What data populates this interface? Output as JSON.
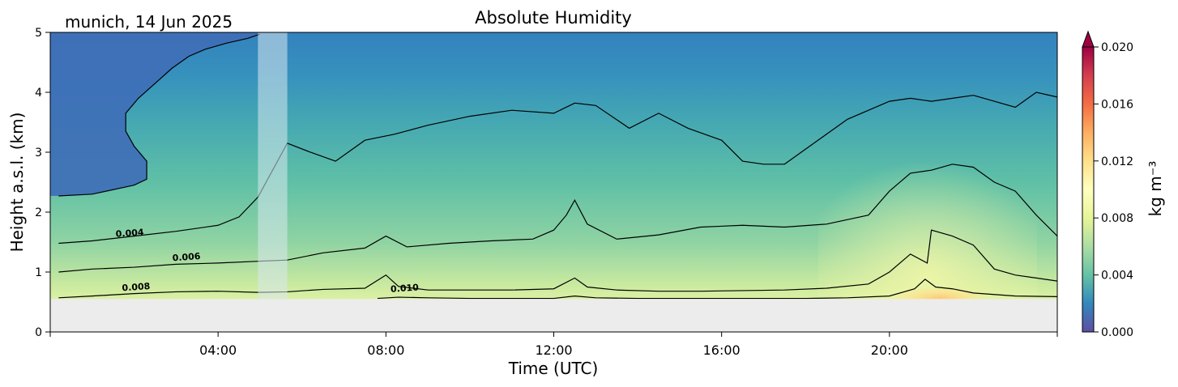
{
  "chart_data": {
    "type": "heatmap",
    "title": "Absolute Humidity",
    "corner_label": "munich, 14 Jun 2025",
    "xlabel": "Time (UTC)",
    "ylabel": "Height a.s.l. (km)",
    "xlim": [
      0,
      24
    ],
    "ylim": [
      0,
      5
    ],
    "x_ticks": [
      {
        "value": 4,
        "label": "04:00"
      },
      {
        "value": 8,
        "label": "08:00"
      },
      {
        "value": 12,
        "label": "12:00"
      },
      {
        "value": 16,
        "label": "16:00"
      },
      {
        "value": 20,
        "label": "20:00"
      }
    ],
    "y_ticks": [
      0,
      1,
      2,
      3,
      4,
      5
    ],
    "ground_level_km": 0.55,
    "missing_data_interval_hours": [
      4.95,
      5.65
    ],
    "colorbar": {
      "label": "kg m⁻³",
      "min": 0.0,
      "max": 0.02,
      "ticks": [
        "0.000",
        "0.004",
        "0.008",
        "0.012",
        "0.016",
        "0.020"
      ],
      "extend": "max",
      "colormap": [
        "#5e4fa2",
        "#3288bd",
        "#66c2a5",
        "#abdda4",
        "#e6f598",
        "#ffffbf",
        "#fee08b",
        "#fdae61",
        "#f46d43",
        "#d53e4f",
        "#9e0142"
      ]
    },
    "contour_labels": [
      {
        "text": "0.004",
        "x": 1.9,
        "y": 1.6
      },
      {
        "text": "0.006",
        "x": 3.25,
        "y": 1.2
      },
      {
        "text": "0.008",
        "x": 2.05,
        "y": 0.7
      },
      {
        "text": "0.010",
        "x": 8.45,
        "y": 0.68
      }
    ],
    "contours": [
      {
        "level": 0.002,
        "x": [
          0.2,
          1,
          2,
          2.3,
          2.3,
          2,
          1.8,
          1.8,
          2.1,
          2.5,
          2.9,
          3.3,
          3.7,
          4.2,
          4.7,
          5
        ],
        "y": [
          2.27,
          2.3,
          2.45,
          2.55,
          2.85,
          3.1,
          3.35,
          3.65,
          3.9,
          4.15,
          4.4,
          4.6,
          4.72,
          4.82,
          4.9,
          4.97
        ]
      },
      {
        "level": 0.004,
        "x": [
          0.2,
          1,
          2,
          3,
          4,
          4.5,
          4.95,
          5.65,
          6.2,
          6.8,
          7.5,
          8.2,
          9,
          10,
          11,
          12,
          12.5,
          13,
          13.8,
          14.5,
          15.2,
          16,
          16.5,
          17,
          17.5,
          18,
          18.5,
          19,
          19.5,
          20,
          20.5,
          21,
          21.5,
          22,
          22.5,
          23,
          23.5,
          24
        ],
        "y": [
          1.48,
          1.52,
          1.6,
          1.68,
          1.78,
          1.92,
          2.25,
          3.15,
          3.0,
          2.85,
          3.2,
          3.3,
          3.45,
          3.6,
          3.7,
          3.65,
          3.82,
          3.78,
          3.4,
          3.65,
          3.4,
          3.2,
          2.85,
          2.8,
          2.8,
          3.05,
          3.3,
          3.55,
          3.7,
          3.85,
          3.9,
          3.85,
          3.9,
          3.95,
          3.85,
          3.75,
          4.0,
          3.92
        ]
      },
      {
        "level": 0.006,
        "x": [
          0.2,
          1,
          2,
          3,
          4,
          4.95,
          5.65,
          6.5,
          7.5,
          8,
          8.5,
          9.5,
          10.5,
          11.5,
          12,
          12.3,
          12.5,
          12.8,
          13.5,
          14.5,
          15.5,
          16.5,
          17.5,
          18.5,
          19.5,
          20,
          20.5,
          21,
          21.5,
          22,
          22.5,
          23,
          23.5,
          24
        ],
        "y": [
          1.0,
          1.05,
          1.08,
          1.13,
          1.15,
          1.18,
          1.2,
          1.32,
          1.4,
          1.6,
          1.42,
          1.48,
          1.52,
          1.55,
          1.7,
          1.95,
          2.2,
          1.8,
          1.55,
          1.62,
          1.75,
          1.78,
          1.75,
          1.8,
          1.95,
          2.35,
          2.65,
          2.7,
          2.8,
          2.75,
          2.5,
          2.35,
          1.95,
          1.6
        ]
      },
      {
        "level": 0.008,
        "x": [
          0.2,
          1,
          2,
          3,
          4,
          4.95,
          5.65,
          6.5,
          7.5,
          8,
          8.3,
          9,
          10,
          11,
          12,
          12.5,
          12.8,
          13.5,
          14.5,
          15.5,
          16.5,
          17.5,
          18.5,
          19.5,
          20,
          20.5,
          20.9,
          21,
          21.5,
          22,
          22.5,
          23,
          23.5,
          24
        ],
        "y": [
          0.57,
          0.6,
          0.64,
          0.67,
          0.68,
          0.66,
          0.67,
          0.71,
          0.73,
          0.95,
          0.76,
          0.7,
          0.7,
          0.7,
          0.72,
          0.9,
          0.75,
          0.7,
          0.68,
          0.68,
          0.69,
          0.7,
          0.73,
          0.8,
          1.0,
          1.3,
          1.15,
          1.7,
          1.6,
          1.45,
          1.05,
          0.95,
          0.9,
          0.85
        ]
      },
      {
        "level": 0.01,
        "x": [
          7.8,
          8.3,
          9,
          10,
          11,
          12,
          12.5,
          13,
          14,
          15,
          16,
          17,
          18,
          19,
          20,
          20.6,
          20.85,
          21.1,
          21.5,
          22,
          23,
          24
        ],
        "y": [
          0.56,
          0.58,
          0.57,
          0.56,
          0.56,
          0.56,
          0.6,
          0.57,
          0.56,
          0.56,
          0.56,
          0.56,
          0.56,
          0.57,
          0.6,
          0.72,
          0.88,
          0.75,
          0.72,
          0.65,
          0.6,
          0.59
        ]
      }
    ]
  }
}
